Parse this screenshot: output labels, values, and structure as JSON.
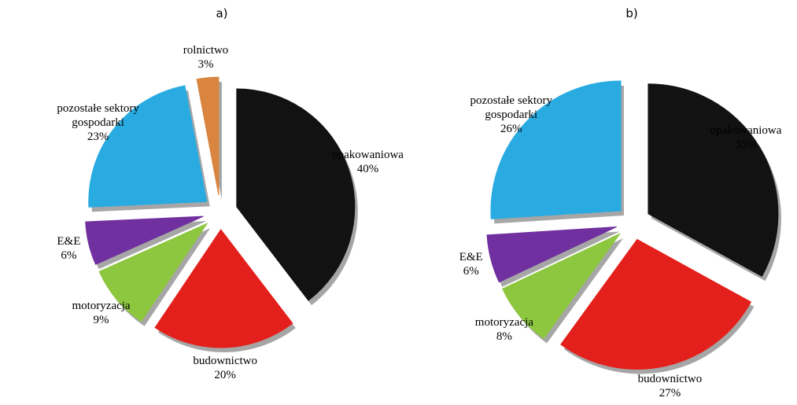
{
  "chart_data": [
    {
      "type": "pie",
      "title": "a)",
      "categories": [
        "opakowaniowa",
        "budownictwo",
        "motoryzacja",
        "E&E",
        "pozostałe sektory gospodarki",
        "rolnictwo"
      ],
      "values": [
        40,
        20,
        9,
        6,
        23,
        3
      ],
      "value_labels": [
        "40%",
        "20%",
        "9%",
        "6%",
        "23%",
        "3%"
      ],
      "colors": [
        "#121212",
        "#e3201b",
        "#8dc63f",
        "#7030a0",
        "#29abe2",
        "#d9843f"
      ]
    },
    {
      "type": "pie",
      "title": "b)",
      "categories": [
        "opakowaniowa",
        "budownictwo",
        "motoryzacja",
        "E&E",
        "pozostałe sektory gospodarki"
      ],
      "values": [
        33,
        27,
        8,
        6,
        26
      ],
      "value_labels": [
        "33%",
        "27%",
        "8%",
        "6%",
        "26%"
      ],
      "colors": [
        "#121212",
        "#e3201b",
        "#8dc63f",
        "#7030a0",
        "#29abe2"
      ]
    }
  ]
}
